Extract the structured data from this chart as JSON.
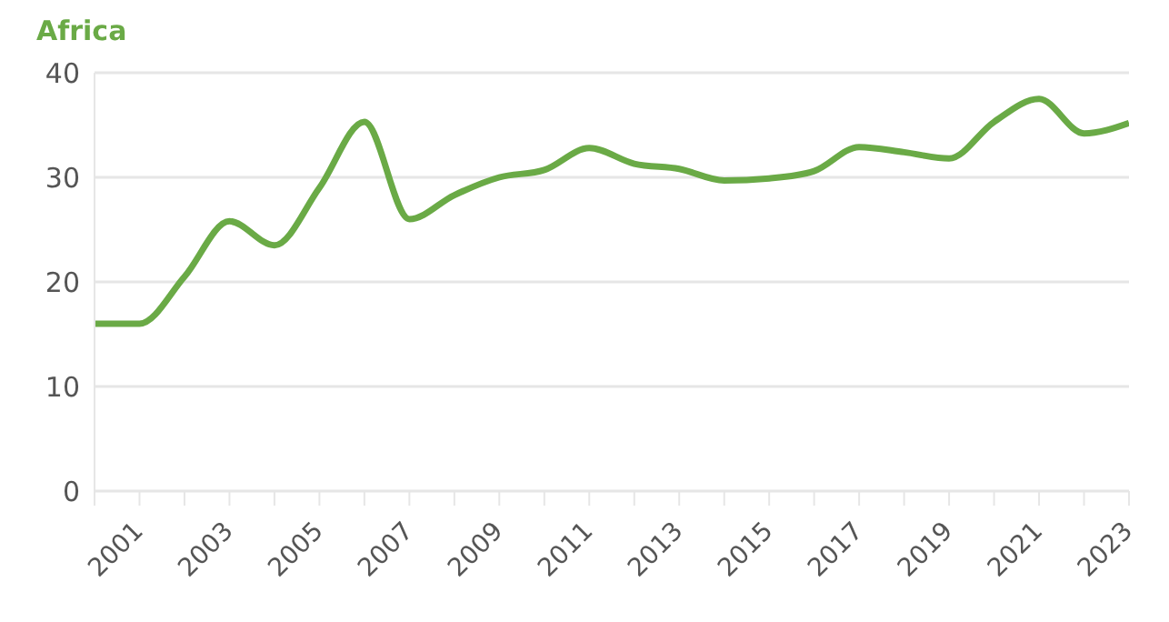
{
  "chart_data": {
    "type": "line",
    "title": "Africa",
    "x": [
      2000,
      2001,
      2002,
      2003,
      2004,
      2005,
      2006,
      2007,
      2008,
      2009,
      2010,
      2011,
      2012,
      2013,
      2014,
      2015,
      2016,
      2017,
      2018,
      2019,
      2020,
      2021,
      2022,
      2023
    ],
    "series": [
      {
        "color": "#6aaa46",
        "values": [
          16,
          16,
          20.5,
          25.8,
          23.5,
          29,
          35.3,
          26,
          28.3,
          30,
          30.7,
          32.8,
          31.3,
          30.8,
          29.7,
          29.9,
          30.6,
          32.9,
          32.4,
          31.8,
          35.3,
          37.5,
          34.2,
          35.2
        ]
      }
    ],
    "xlim": [
      2000,
      2023
    ],
    "xticks": [
      {
        "value": 2000,
        "label": null
      },
      2001,
      {
        "value": 2002,
        "label": null
      },
      2003,
      {
        "value": 2004,
        "label": null
      },
      2005,
      {
        "value": 2006,
        "label": null
      },
      2007,
      {
        "value": 2008,
        "label": null
      },
      2009,
      {
        "value": 2010,
        "label": null
      },
      2011,
      {
        "value": 2012,
        "label": null
      },
      2013,
      {
        "value": 2014,
        "label": null
      },
      2015,
      {
        "value": 2016,
        "label": null
      },
      2017,
      {
        "value": 2018,
        "label": null
      },
      2019,
      {
        "value": 2020,
        "label": null
      },
      2021,
      {
        "value": 2022,
        "label": null
      },
      2023
    ],
    "ylim": [
      0,
      40
    ],
    "yticks": [
      0,
      10,
      20,
      30,
      40
    ],
    "grid": "y",
    "marker": "none",
    "line_style": "solid"
  }
}
